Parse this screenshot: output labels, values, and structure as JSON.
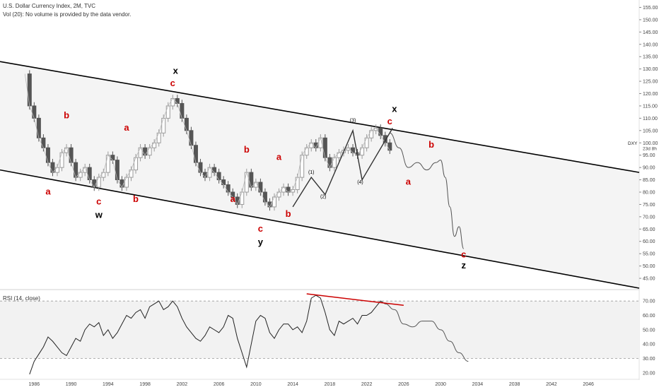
{
  "header": {
    "title": "U.S. Dollar Currency Index, 2M, TVC",
    "volume_note": "Vol (20): No volume is provided by the data vendor."
  },
  "rsi": {
    "title": "RSI (14, close)",
    "y_ticks": [
      "70.00",
      "60.00",
      "50.00",
      "40.00",
      "30.00",
      "20.00"
    ],
    "levels": [
      70,
      30
    ]
  },
  "price_axis": {
    "ticks": [
      "155.00",
      "150.00",
      "145.00",
      "140.00",
      "135.00",
      "130.00",
      "125.00",
      "120.00",
      "115.00",
      "110.00",
      "105.00",
      "100.00",
      "95.00",
      "90.00",
      "85.00",
      "80.00",
      "75.00",
      "70.00",
      "65.00",
      "60.00",
      "55.00",
      "50.00",
      "45.00"
    ],
    "current_symbol": "DXY",
    "current_price": "100.00",
    "countdown": "23d 8h"
  },
  "time_axis": {
    "ticks": [
      "1986",
      "1990",
      "1994",
      "1998",
      "2002",
      "2006",
      "2010",
      "2014",
      "2018",
      "2022",
      "2026",
      "2030",
      "2034",
      "2038",
      "2042",
      "2046"
    ]
  },
  "wave_labels": [
    {
      "text": "a",
      "color": "#cc0000",
      "t": 1987.5,
      "v": 79
    },
    {
      "text": "b",
      "color": "#cc0000",
      "t": 1989.5,
      "v": 110
    },
    {
      "text": "c",
      "color": "#cc0000",
      "t": 1993.0,
      "v": 75
    },
    {
      "text": "w",
      "color": "#000000",
      "t": 1993.0,
      "v": 69.5
    },
    {
      "text": "a",
      "color": "#cc0000",
      "t": 1996.0,
      "v": 105
    },
    {
      "text": "b",
      "color": "#cc0000",
      "t": 1997.0,
      "v": 76
    },
    {
      "text": "x",
      "color": "#000000",
      "t": 2001.3,
      "v": 128
    },
    {
      "text": "c",
      "color": "#cc0000",
      "t": 2001.0,
      "v": 123
    },
    {
      "text": "b",
      "color": "#cc0000",
      "t": 2009.0,
      "v": 96
    },
    {
      "text": "a",
      "color": "#cc0000",
      "t": 2012.5,
      "v": 93
    },
    {
      "text": "a",
      "color": "#cc0000",
      "t": 2007.5,
      "v": 76
    },
    {
      "text": "c",
      "color": "#cc0000",
      "t": 2010.5,
      "v": 64
    },
    {
      "text": "y",
      "color": "#000000",
      "t": 2010.5,
      "v": 58.5
    },
    {
      "text": "b",
      "color": "#cc0000",
      "t": 2013.5,
      "v": 70
    },
    {
      "text": "(1)",
      "color": "#000000",
      "t": 2016.0,
      "v": 87.5
    },
    {
      "text": "(2)",
      "color": "#000000",
      "t": 2017.3,
      "v": 77.5
    },
    {
      "text": "(3)",
      "color": "#000000",
      "t": 2020.5,
      "v": 108.5
    },
    {
      "text": "(4)",
      "color": "#000000",
      "t": 2021.3,
      "v": 83.5
    },
    {
      "text": "x",
      "color": "#000000",
      "t": 2025.0,
      "v": 112.5
    },
    {
      "text": "c",
      "color": "#cc0000",
      "t": 2024.5,
      "v": 107.5
    },
    {
      "text": "b",
      "color": "#cc0000",
      "t": 2029.0,
      "v": 98
    },
    {
      "text": "a",
      "color": "#cc0000",
      "t": 2026.5,
      "v": 83
    },
    {
      "text": "c",
      "color": "#cc0000",
      "t": 2032.5,
      "v": 53.5
    },
    {
      "text": "z",
      "color": "#000000",
      "t": 2032.5,
      "v": 49
    }
  ],
  "chart_data": {
    "type": "line",
    "title": "U.S. Dollar Currency Index, 2M, TVC",
    "x_range": [
      1982.3,
      2051.5
    ],
    "ylim": [
      41,
      158
    ],
    "grid": false,
    "upper_channel": {
      "x": [
        1982.3,
        2051.5
      ],
      "y": [
        133,
        88
      ]
    },
    "lower_channel": {
      "x": [
        1982.3,
        2051.5
      ],
      "y": [
        89,
        41
      ]
    },
    "series": [
      {
        "x": [
          1985.0,
          1985.5,
          1986.0,
          1986.5,
          1987.0,
          1987.5,
          1988.0,
          1988.5,
          1989.0,
          1989.5,
          1990.0,
          1990.5,
          1991.0,
          1991.5,
          1992.0,
          1992.5,
          1993.0,
          1993.5,
          1994.0,
          1994.5,
          1995.0,
          1995.5,
          1996.0,
          1996.5,
          1997.0,
          1997.5,
          1998.0,
          1998.5,
          1999.0,
          1999.5,
          2000.0,
          2000.5,
          2001.0,
          2001.5,
          2002.0,
          2002.5,
          2003.0,
          2003.5,
          2004.0,
          2004.5,
          2005.0,
          2005.5,
          2006.0,
          2006.5,
          2007.0,
          2007.5,
          2008.0,
          2008.5,
          2009.0,
          2009.5,
          2010.0,
          2010.5,
          2011.0,
          2011.5,
          2012.0,
          2012.5,
          2013.0,
          2013.5,
          2014.0,
          2014.5,
          2015.0,
          2015.5,
          2016.0,
          2016.5,
          2017.0,
          2017.5,
          2018.0,
          2018.5,
          2019.0,
          2019.5,
          2020.0,
          2020.5,
          2021.0,
          2021.5,
          2022.0,
          2022.5,
          2023.0,
          2023.5,
          2024.0,
          2024.5
        ],
        "y": [
          128,
          115,
          110,
          102,
          98,
          92,
          88,
          90,
          96,
          98,
          92,
          86,
          88,
          90,
          85,
          82,
          86,
          88,
          95,
          93,
          85,
          82,
          86,
          89,
          94,
          98,
          95,
          98,
          100,
          104,
          110,
          115,
          118,
          116,
          110,
          105,
          99,
          92,
          88,
          86,
          90,
          88,
          85,
          83,
          80,
          78,
          75,
          80,
          88,
          82,
          84,
          80,
          76,
          74,
          78,
          80,
          82,
          80,
          81,
          86,
          95,
          98,
          100,
          98,
          102,
          94,
          90,
          94,
          96,
          97,
          98,
          96,
          95,
          98,
          102,
          105,
          106,
          103,
          100,
          97
        ]
      },
      {
        "x": [
          2024.5,
          2025.5,
          2026.5,
          2027.5,
          2028.5,
          2029.5,
          2030.0,
          2030.5,
          2031.0,
          2031.5,
          2032.0,
          2032.5
        ],
        "y": [
          104,
          98,
          90,
          92,
          89,
          92,
          93,
          86,
          74,
          62,
          66,
          57
        ]
      }
    ],
    "rsi": {
      "ylim": [
        16,
        76
      ],
      "series": [
        {
          "x": [
            1985.5,
            1986.0,
            1986.5,
            1987.0,
            1987.5,
            1988.0,
            1988.5,
            1989.0,
            1989.5,
            1990.0,
            1990.5,
            1991.0,
            1991.5,
            1992.0,
            1992.5,
            1993.0,
            1993.5,
            1994.0,
            1994.5,
            1995.0,
            1995.5,
            1996.0,
            1996.5,
            1997.0,
            1997.5,
            1998.0,
            1998.5,
            1999.0,
            1999.5,
            2000.0,
            2000.5,
            2001.0,
            2001.5,
            2002.0,
            2002.5,
            2003.0,
            2003.5,
            2004.0,
            2004.5,
            2005.0,
            2005.5,
            2006.0,
            2006.5,
            2007.0,
            2007.5,
            2008.0,
            2008.5,
            2009.0,
            2009.5,
            2010.0,
            2010.5,
            2011.0,
            2011.5,
            2012.0,
            2012.5,
            2013.0,
            2013.5,
            2014.0,
            2014.5,
            2015.0,
            2015.5,
            2016.0,
            2016.5,
            2017.0,
            2017.5,
            2018.0,
            2018.5,
            2019.0,
            2019.5,
            2020.0,
            2020.5,
            2021.0,
            2021.5,
            2022.0,
            2022.5,
            2023.0,
            2023.5,
            2024.0
          ],
          "y": [
            19,
            28,
            33,
            38,
            45,
            42,
            38,
            34,
            32,
            38,
            44,
            42,
            50,
            54,
            52,
            55,
            46,
            50,
            44,
            48,
            54,
            60,
            58,
            62,
            64,
            58,
            66,
            68,
            70,
            64,
            66,
            70,
            66,
            58,
            52,
            48,
            44,
            42,
            46,
            52,
            50,
            48,
            52,
            60,
            58,
            44,
            34,
            24,
            40,
            56,
            60,
            58,
            48,
            44,
            50,
            54,
            54,
            50,
            52,
            48,
            56,
            72,
            74,
            72,
            62,
            50,
            46,
            56,
            54,
            56,
            58,
            54,
            60,
            60,
            62,
            66,
            70,
            68
          ]
        },
        {
          "x": [
            2024.0,
            2025.0,
            2026.0,
            2027.0,
            2028.0,
            2029.0,
            2030.0,
            2031.0,
            2032.0,
            2033.0
          ],
          "y": [
            68,
            64,
            54,
            52,
            56,
            56,
            50,
            42,
            34,
            28
          ]
        }
      ],
      "levels": [
        70,
        30
      ]
    }
  }
}
